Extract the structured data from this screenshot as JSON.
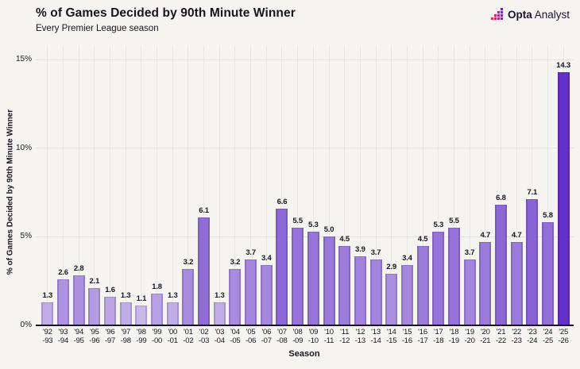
{
  "header": {
    "title": "% of Games Decided by 90th Minute Winner",
    "subtitle": "Every Premier League season"
  },
  "logo": {
    "icon": "opta-pixel-mark",
    "name_bold": "Opta",
    "name_regular": "Analyst",
    "icon_colors": [
      "#e62a3f",
      "#d61e5a",
      "#a52a85",
      "#6f2fad"
    ],
    "icon_top_color": "#5e2c92"
  },
  "chart_data": {
    "type": "bar",
    "title": "% of Games Decided by 90th Minute Winner",
    "subtitle": "Every Premier League season",
    "xlabel": "Season",
    "ylabel": "% of Games Decided by 90th Minute Winner",
    "ylim": [
      0,
      15
    ],
    "grid": true,
    "legend": "none",
    "yticks": [
      {
        "value": 0,
        "label": "0%"
      },
      {
        "value": 5,
        "label": "5%"
      },
      {
        "value": 10,
        "label": "10%"
      },
      {
        "value": 15,
        "label": "15%"
      }
    ],
    "categories": [
      "'92-93",
      "'93-94",
      "'94-95",
      "'95-96",
      "'96-97",
      "'97-98",
      "'98-99",
      "'99-00",
      "'00-01",
      "'01-02",
      "'02-03",
      "'03-04",
      "'04-05",
      "'05-06",
      "'06-07",
      "'07-08",
      "'08-09",
      "'09-10",
      "'10-11",
      "'11-12",
      "'12-13",
      "'13-14",
      "'14-15",
      "'15-16",
      "'16-17",
      "'17-18",
      "'18-19",
      "'19-20",
      "'20-21",
      "'21-22",
      "'22-23",
      "'23-24",
      "'24-25",
      "'25-26"
    ],
    "values": [
      1.3,
      2.6,
      2.8,
      2.1,
      1.6,
      1.3,
      1.1,
      1.8,
      1.3,
      3.2,
      6.1,
      1.3,
      3.2,
      3.7,
      3.4,
      6.6,
      5.5,
      5.3,
      5.0,
      4.5,
      3.9,
      3.7,
      2.9,
      3.4,
      4.5,
      5.3,
      5.5,
      3.7,
      4.7,
      6.8,
      4.7,
      7.1,
      5.8,
      14.3
    ],
    "value_labels": [
      "1.3",
      "2.6",
      "2.8",
      "2.1",
      "1.6",
      "1.3",
      "1.1",
      "1.8",
      "1.3",
      "3.2",
      "6.1",
      "1.3",
      "3.2",
      "3.7",
      "3.4",
      "6.6",
      "5.5",
      "5.3",
      "5.0",
      "4.5",
      "3.9",
      "3.7",
      "2.9",
      "3.4",
      "4.5",
      "5.3",
      "5.5",
      "3.7",
      "4.7",
      "6.8",
      "4.7",
      "7.1",
      "5.8",
      "14.3"
    ],
    "colors": {
      "background": "#f5f4f0",
      "bar_min": "#c9b8ea",
      "bar_max": "#6330c8",
      "grid": "#e6e4e0",
      "axis": "#17161f",
      "text": "#17161f"
    }
  }
}
